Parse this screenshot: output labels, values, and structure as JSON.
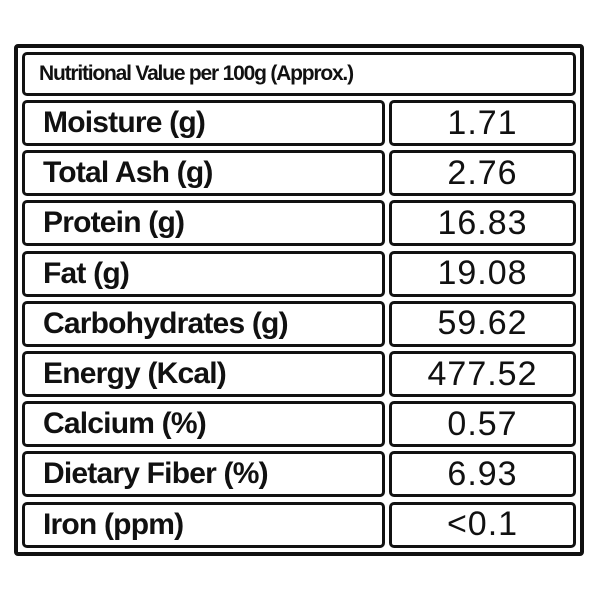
{
  "table": {
    "title": "Nutritional Value per 100g (Approx.)",
    "rows": [
      [
        "Moisture (g)",
        "1.71"
      ],
      [
        "Total Ash (g)",
        "2.76"
      ],
      [
        "Protein (g)",
        "16.83"
      ],
      [
        "Fat (g)",
        "19.08"
      ],
      [
        "Carbohydrates (g)",
        "59.62"
      ],
      [
        "Energy (Kcal)",
        "477.52"
      ],
      [
        "Calcium (%)",
        "0.57"
      ],
      [
        "Dietary Fiber (%)",
        "6.93"
      ],
      [
        "Iron (ppm)",
        "<0.1"
      ]
    ]
  }
}
